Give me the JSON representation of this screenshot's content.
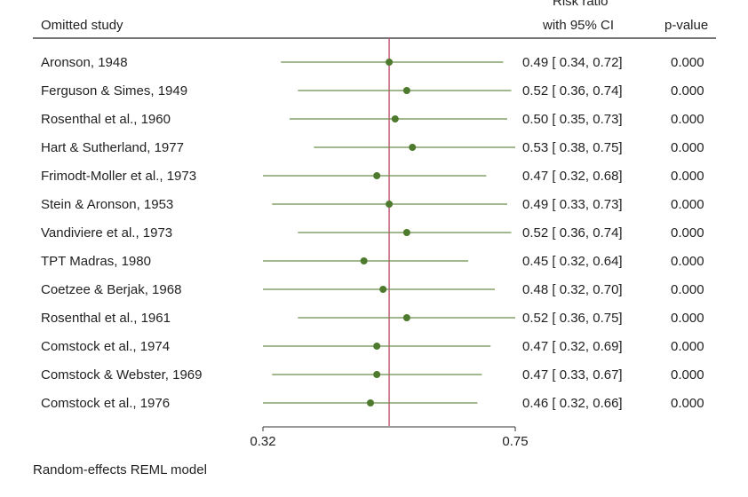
{
  "header": {
    "study_col": "Omitted study",
    "rr_col_line1": "Risk ratio",
    "rr_col_line2": "with 95% CI",
    "p_col": "p-value"
  },
  "footnote": "Random-effects REML model",
  "colors": {
    "marker": "#4e7a2e",
    "ci_line": "#6b8f4a",
    "reference_line": "#c0506e",
    "axis": "#333333"
  },
  "chart_data": {
    "type": "forest",
    "x_scale": "log",
    "xlim": [
      0.32,
      0.75
    ],
    "xticks": [
      0.32,
      0.75
    ],
    "xtick_labels": [
      "0.32",
      "0.75"
    ],
    "overall_estimate": 0.49,
    "grid": false,
    "rows": [
      {
        "study": "Aronson, 1948",
        "rr": 0.49,
        "lo": 0.34,
        "hi": 0.72,
        "rr_text": "0.49",
        "lo_text": "0.34",
        "hi_text": "0.72",
        "p": "0.000"
      },
      {
        "study": "Ferguson & Simes, 1949",
        "rr": 0.52,
        "lo": 0.36,
        "hi": 0.74,
        "rr_text": "0.52",
        "lo_text": "0.36",
        "hi_text": "0.74",
        "p": "0.000"
      },
      {
        "study": "Rosenthal et al., 1960",
        "rr": 0.5,
        "lo": 0.35,
        "hi": 0.73,
        "rr_text": "0.50",
        "lo_text": "0.35",
        "hi_text": "0.73",
        "p": "0.000"
      },
      {
        "study": "Hart & Sutherland, 1977",
        "rr": 0.53,
        "lo": 0.38,
        "hi": 0.75,
        "rr_text": "0.53",
        "lo_text": "0.38",
        "hi_text": "0.75",
        "p": "0.000"
      },
      {
        "study": "Frimodt-Moller et al., 1973",
        "rr": 0.47,
        "lo": 0.32,
        "hi": 0.68,
        "rr_text": "0.47",
        "lo_text": "0.32",
        "hi_text": "0.68",
        "p": "0.000"
      },
      {
        "study": "Stein & Aronson, 1953",
        "rr": 0.49,
        "lo": 0.33,
        "hi": 0.73,
        "rr_text": "0.49",
        "lo_text": "0.33",
        "hi_text": "0.73",
        "p": "0.000"
      },
      {
        "study": "Vandiviere et al., 1973",
        "rr": 0.52,
        "lo": 0.36,
        "hi": 0.74,
        "rr_text": "0.52",
        "lo_text": "0.36",
        "hi_text": "0.74",
        "p": "0.000"
      },
      {
        "study": "TPT Madras, 1980",
        "rr": 0.45,
        "lo": 0.32,
        "hi": 0.64,
        "rr_text": "0.45",
        "lo_text": "0.32",
        "hi_text": "0.64",
        "p": "0.000"
      },
      {
        "study": "Coetzee & Berjak, 1968",
        "rr": 0.48,
        "lo": 0.32,
        "hi": 0.7,
        "rr_text": "0.48",
        "lo_text": "0.32",
        "hi_text": "0.70",
        "p": "0.000"
      },
      {
        "study": "Rosenthal et al., 1961",
        "rr": 0.52,
        "lo": 0.36,
        "hi": 0.75,
        "rr_text": "0.52",
        "lo_text": "0.36",
        "hi_text": "0.75",
        "p": "0.000"
      },
      {
        "study": "Comstock et al., 1974",
        "rr": 0.47,
        "lo": 0.32,
        "hi": 0.69,
        "rr_text": "0.47",
        "lo_text": "0.32",
        "hi_text": "0.69",
        "p": "0.000"
      },
      {
        "study": "Comstock & Webster, 1969",
        "rr": 0.47,
        "lo": 0.33,
        "hi": 0.67,
        "rr_text": "0.47",
        "lo_text": "0.33",
        "hi_text": "0.67",
        "p": "0.000"
      },
      {
        "study": "Comstock et al., 1976",
        "rr": 0.46,
        "lo": 0.32,
        "hi": 0.66,
        "rr_text": "0.46",
        "lo_text": "0.32",
        "hi_text": "0.66",
        "p": "0.000"
      }
    ]
  }
}
